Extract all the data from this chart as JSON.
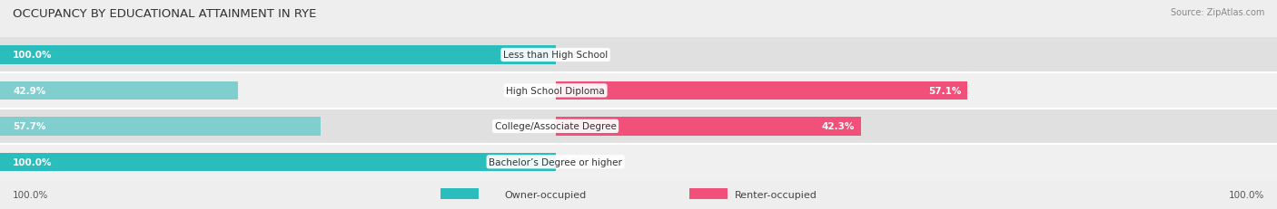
{
  "title": "OCCUPANCY BY EDUCATIONAL ATTAINMENT IN RYE",
  "source": "Source: ZipAtlas.com",
  "categories": [
    "Less than High School",
    "High School Diploma",
    "College/Associate Degree",
    "Bachelor’s Degree or higher"
  ],
  "owner_values": [
    100.0,
    42.9,
    57.7,
    100.0
  ],
  "renter_values": [
    0.0,
    57.1,
    42.3,
    0.0
  ],
  "owner_color_strong": "#2BBCBC",
  "owner_color_light": "#80CECE",
  "renter_color_strong": "#F0507A",
  "renter_color_light": "#F4A0BC",
  "background_color": "#eeeeee",
  "row_bg_dark": "#e0e0e0",
  "row_bg_light": "#f0f0f0",
  "bar_height": 0.52,
  "title_fontsize": 9.5,
  "label_fontsize": 7.5,
  "value_fontsize": 7.5,
  "legend_fontsize": 8,
  "source_fontsize": 7
}
